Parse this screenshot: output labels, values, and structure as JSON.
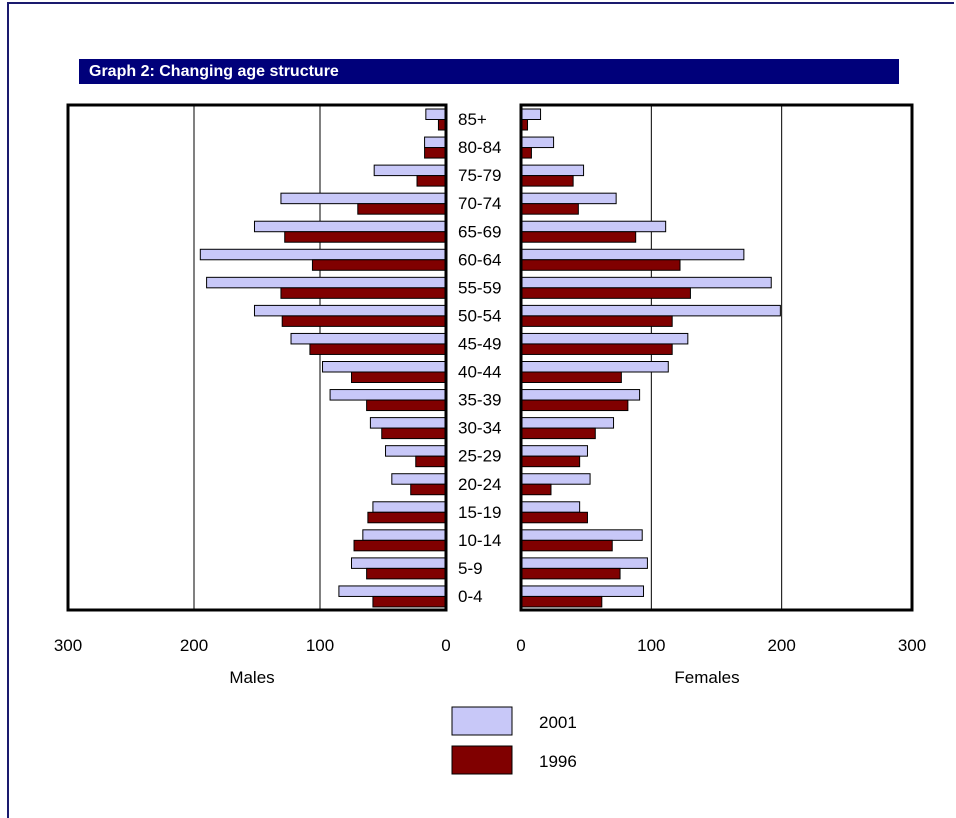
{
  "colors": {
    "frame": "#1a1a6e",
    "title_background": "#00007a",
    "title_text": "#ffffff",
    "series_2001": "#c8c8f8",
    "series_1996": "#800000",
    "bar_stroke": "#000000"
  },
  "chart_data": {
    "type": "bar",
    "title": "Graph 2: Changing age structure",
    "orientation": "horizontal-population-pyramid",
    "categories": [
      "85+",
      "80-84",
      "75-79",
      "70-74",
      "65-69",
      "60-64",
      "55-59",
      "50-54",
      "45-49",
      "40-44",
      "35-39",
      "30-34",
      "25-29",
      "20-24",
      "15-19",
      "10-14",
      "5-9",
      "0-4"
    ],
    "males_label": "Males",
    "females_label": "Females",
    "x_ticks": [
      "300",
      "200",
      "100",
      "0"
    ],
    "xlim": [
      0,
      300
    ],
    "grid": true,
    "legend_position": "bottom-center",
    "series": [
      {
        "name": "2001",
        "males": [
          16,
          17,
          57,
          131,
          152,
          195,
          190,
          152,
          123,
          98,
          92,
          60,
          48,
          43,
          58,
          66,
          75,
          85
        ],
        "females": [
          15,
          25,
          48,
          73,
          111,
          171,
          192,
          199,
          128,
          113,
          91,
          71,
          51,
          53,
          45,
          93,
          97,
          94
        ]
      },
      {
        "name": "1996",
        "males": [
          6,
          17,
          23,
          70,
          128,
          106,
          131,
          130,
          108,
          75,
          63,
          51,
          24,
          28,
          62,
          73,
          63,
          58
        ],
        "females": [
          5,
          8,
          40,
          44,
          88,
          122,
          130,
          116,
          116,
          77,
          82,
          57,
          45,
          23,
          51,
          70,
          76,
          62
        ]
      }
    ]
  }
}
